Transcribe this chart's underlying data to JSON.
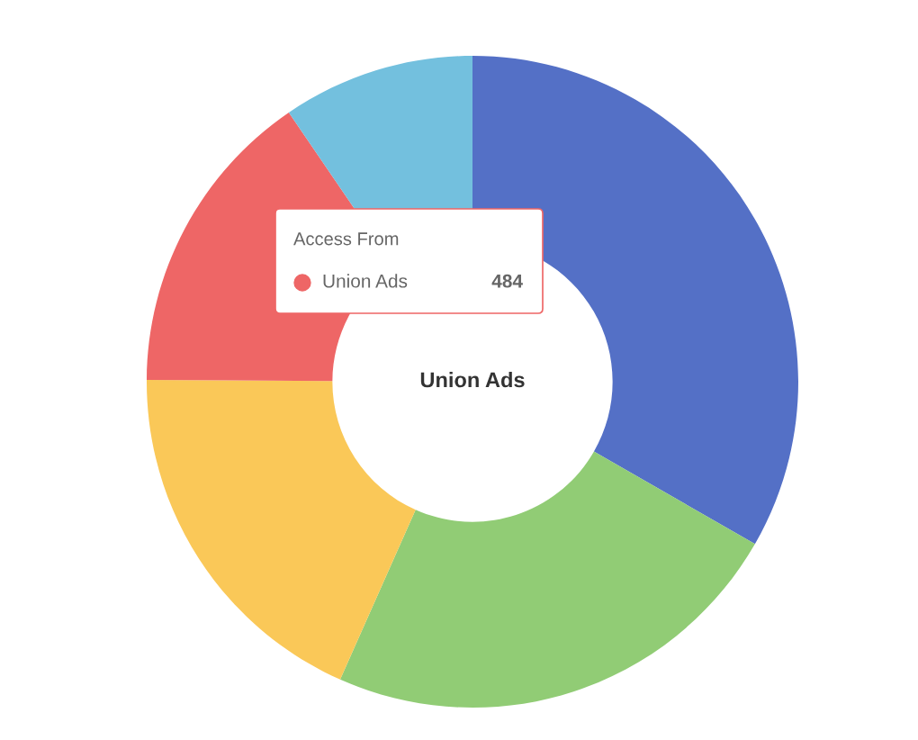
{
  "chart_data": {
    "type": "donut",
    "categories": [
      null,
      null,
      null,
      "Union Ads",
      null
    ],
    "values": [
      1048,
      735,
      580,
      484,
      300
    ],
    "colors": [
      "#5470c6",
      "#91cc75",
      "#fac858",
      "#ee6666",
      "#73c0de"
    ],
    "value_labels": [
      null,
      null,
      null,
      "484",
      null
    ],
    "annotations": [
      "Access From"
    ]
  }
}
